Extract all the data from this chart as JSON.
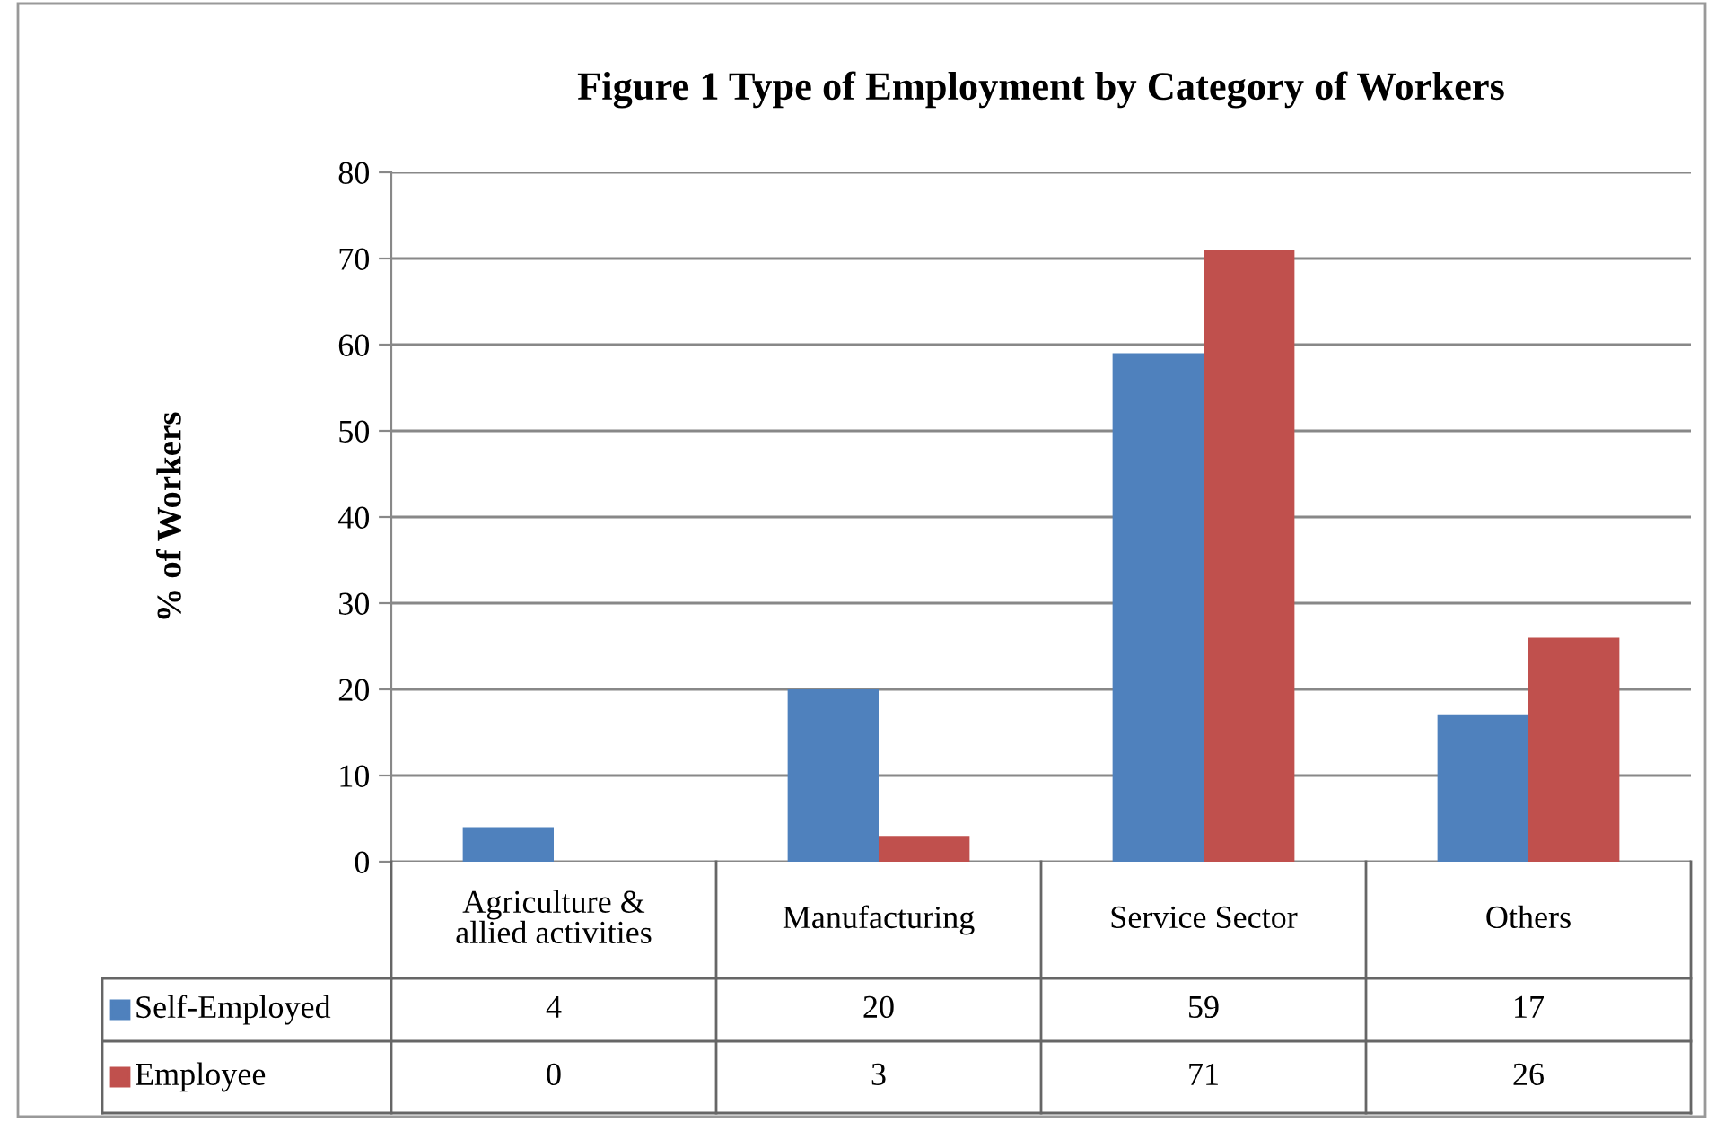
{
  "chart_data": {
    "type": "bar",
    "title": "Figure 1 Type of Employment by Category of Workers",
    "ylabel": "% of Workers",
    "categories": [
      "Agriculture &\nallied activities",
      "Manufacturing",
      "Service Sector",
      "Others"
    ],
    "series": [
      {
        "name": "Self-Employed",
        "color": "#4f81bd",
        "values": [
          4,
          20,
          59,
          17
        ]
      },
      {
        "name": "Employee",
        "color": "#c0504d",
        "values": [
          0,
          3,
          71,
          26
        ]
      }
    ],
    "ylim": [
      0,
      80
    ],
    "yticks": [
      0,
      10,
      20,
      30,
      40,
      50,
      60,
      70,
      80
    ],
    "grid": "y",
    "data_labels": true,
    "legend": "bottom left"
  }
}
